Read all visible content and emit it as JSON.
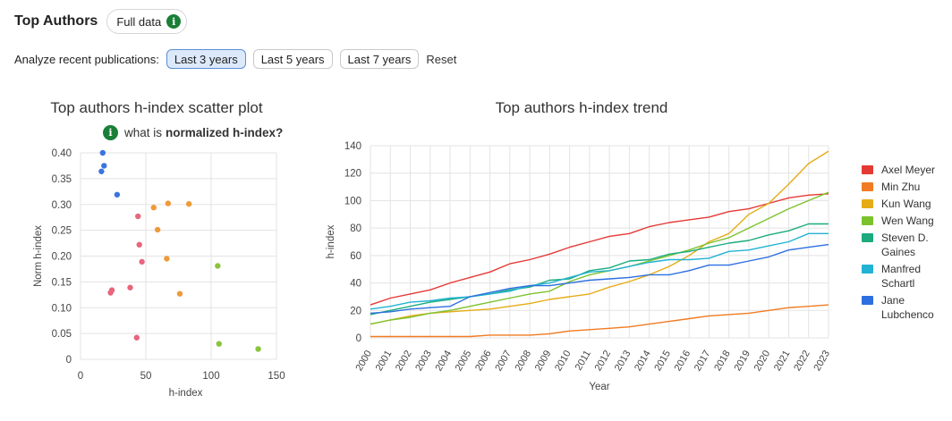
{
  "header": {
    "title": "Top Authors",
    "full_data_label": "Full data",
    "info_glyph": "i"
  },
  "filters": {
    "label": "Analyze recent publications:",
    "options": [
      "Last 3 years",
      "Last 5 years",
      "Last 7 years"
    ],
    "active_index": 0,
    "reset_label": "Reset"
  },
  "scatter_info": {
    "glyph": "i",
    "prefix": "what is",
    "bold": "normalized h-index?"
  },
  "chart_data": [
    {
      "type": "scatter",
      "title": "Top authors h-index scatter plot",
      "xlabel": "h-index",
      "ylabel": "Norm h-index",
      "xlim": [
        0,
        150
      ],
      "ylim": [
        0,
        0.4
      ],
      "xticks": [
        "0",
        "50",
        "100",
        "150"
      ],
      "yticks": [
        "0",
        "0.05",
        "0.10",
        "0.15",
        "0.20",
        "0.25",
        "0.30",
        "0.35",
        "0.40"
      ],
      "grid": true,
      "series": [
        {
          "color": "#3b74e0",
          "points": [
            [
              17,
              0.4
            ],
            [
              18,
              0.375
            ],
            [
              16,
              0.364
            ],
            [
              28,
              0.319
            ]
          ]
        },
        {
          "color": "#e8667d",
          "points": [
            [
              44,
              0.277
            ],
            [
              45,
              0.222
            ],
            [
              47,
              0.189
            ],
            [
              38,
              0.139
            ],
            [
              24,
              0.134
            ],
            [
              23,
              0.129
            ],
            [
              43,
              0.042
            ]
          ]
        },
        {
          "color": "#ee9a3a",
          "points": [
            [
              67,
              0.302
            ],
            [
              83,
              0.301
            ],
            [
              56,
              0.294
            ],
            [
              59,
              0.251
            ],
            [
              66,
              0.195
            ],
            [
              76,
              0.127
            ]
          ]
        },
        {
          "color": "#8bc43a",
          "points": [
            [
              105,
              0.181
            ],
            [
              106,
              0.03
            ],
            [
              136,
              0.02
            ]
          ]
        }
      ]
    },
    {
      "type": "line",
      "title": "Top authors h-index trend",
      "xlabel": "Year",
      "ylabel": "h-index",
      "ylim": [
        0,
        140
      ],
      "yticks": [
        "0",
        "20",
        "40",
        "60",
        "80",
        "100",
        "120",
        "140"
      ],
      "x": [
        "2000",
        "2001",
        "2002",
        "2003",
        "2004",
        "2005",
        "2006",
        "2007",
        "2008",
        "2009",
        "2010",
        "2011",
        "2012",
        "2013",
        "2014",
        "2015",
        "2016",
        "2017",
        "2018",
        "2019",
        "2020",
        "2021",
        "2022",
        "2023"
      ],
      "grid": true,
      "legend": "right",
      "series": [
        {
          "name": "Axel Meyer",
          "color": "#e53935",
          "values": [
            24,
            29,
            32,
            35,
            40,
            44,
            48,
            54,
            57,
            61,
            66,
            70,
            74,
            76,
            81,
            84,
            86,
            88,
            92,
            94,
            98,
            102,
            104,
            105
          ]
        },
        {
          "name": "Min Zhu",
          "color": "#f07b22",
          "values": [
            1,
            1,
            1,
            1,
            1,
            1,
            2,
            2,
            2,
            3,
            5,
            6,
            7,
            8,
            10,
            12,
            14,
            16,
            17,
            18,
            20,
            22,
            23,
            24
          ]
        },
        {
          "name": "Kun Wang",
          "color": "#e6ac16",
          "values": [
            10,
            13,
            16,
            18,
            19,
            20,
            21,
            23,
            25,
            28,
            30,
            32,
            37,
            41,
            46,
            52,
            60,
            70,
            76,
            90,
            98,
            112,
            127,
            136
          ]
        },
        {
          "name": "Wen Wang",
          "color": "#7cc22e",
          "values": [
            10,
            13,
            15,
            18,
            20,
            23,
            26,
            29,
            32,
            34,
            41,
            46,
            49,
            52,
            56,
            60,
            64,
            69,
            73,
            80,
            87,
            94,
            100,
            106
          ]
        },
        {
          "name": "Steven D. Gaines",
          "color": "#1bab7e",
          "values": [
            17,
            20,
            23,
            26,
            28,
            30,
            32,
            35,
            37,
            42,
            43,
            49,
            51,
            56,
            57,
            61,
            63,
            66,
            69,
            71,
            75,
            78,
            83,
            83
          ]
        },
        {
          "name": "Manfred Schartl",
          "color": "#22b3d4",
          "values": [
            21,
            23,
            26,
            27,
            29,
            30,
            32,
            34,
            38,
            40,
            44,
            48,
            49,
            52,
            55,
            57,
            57,
            58,
            63,
            64,
            67,
            70,
            76,
            76
          ]
        },
        {
          "name": "Jane Lubchenco",
          "color": "#2d6fe0",
          "values": [
            18,
            19,
            21,
            22,
            23,
            30,
            33,
            36,
            38,
            38,
            40,
            42,
            43,
            44,
            46,
            46,
            49,
            53,
            53,
            56,
            59,
            64,
            66,
            68
          ]
        }
      ]
    }
  ]
}
